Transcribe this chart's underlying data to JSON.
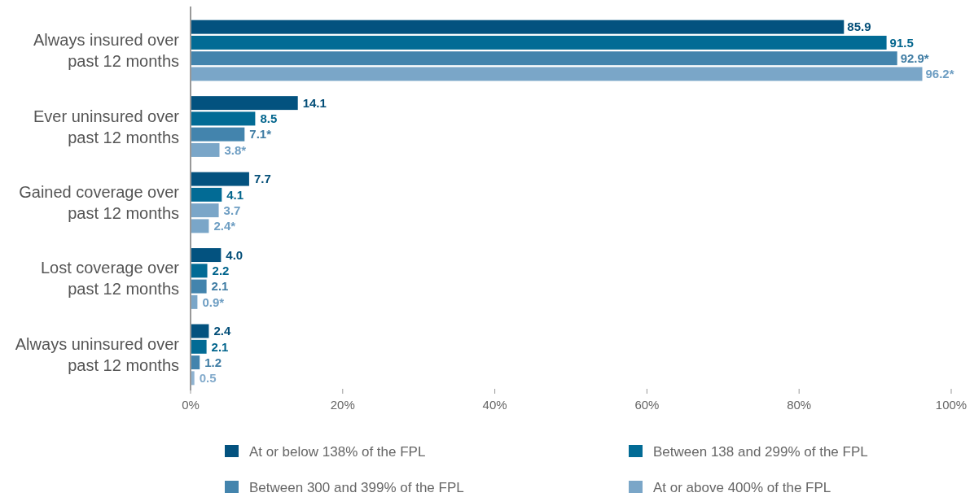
{
  "chart_data": {
    "type": "bar",
    "orientation": "horizontal",
    "categories": [
      "Always insured over past 12 months",
      "Ever uninsured over past 12 months",
      "Gained coverage over past 12 months",
      "Lost coverage over past 12 months",
      "Always uninsured over past 12 months"
    ],
    "series": [
      {
        "name": "At or below 138% of the FPL",
        "color": "#03527f",
        "values": [
          85.9,
          14.1,
          7.7,
          4.0,
          2.4
        ],
        "value_labels": [
          "85.9",
          "14.1",
          "7.7",
          "4.0",
          "2.4"
        ]
      },
      {
        "name": "Between 138 and 299% of the FPL",
        "color": "#026b95",
        "values": [
          91.5,
          8.5,
          4.1,
          2.2,
          2.1
        ],
        "value_labels": [
          "91.5",
          "8.5",
          "4.1",
          "2.2",
          "2.1"
        ]
      },
      {
        "name": "Between 300 and 399% of the FPL",
        "color": "#4384ad",
        "colors": [
          "#4384ad",
          "#4384ad",
          "#7aa6c8",
          "#4384ad",
          "#4384ad"
        ],
        "values": [
          92.9,
          7.1,
          3.7,
          2.1,
          1.2
        ],
        "value_labels": [
          "92.9*",
          "7.1*",
          "3.7",
          "2.1",
          "1.2"
        ]
      },
      {
        "name": "At or above 400% of the FPL",
        "color": "#7aa6c8",
        "colors": [
          "#7aa6c8",
          "#7aa6c8",
          "#7aa6c8",
          "#7aa6c8",
          "#8fb3d0"
        ],
        "values": [
          96.2,
          3.8,
          2.4,
          0.9,
          0.5
        ],
        "value_labels": [
          "96.2*",
          "3.8*",
          "2.4*",
          "0.9*",
          "0.5"
        ]
      }
    ],
    "xlim": [
      0,
      100
    ],
    "xticks": [
      {
        "value": 0,
        "label": "0%"
      },
      {
        "value": 20,
        "label": "20%"
      },
      {
        "value": 40,
        "label": "40%"
      },
      {
        "value": 60,
        "label": "60%"
      },
      {
        "value": 80,
        "label": "80%"
      },
      {
        "value": 100,
        "label": "100%"
      }
    ],
    "grid": false,
    "legend": "bottom"
  }
}
